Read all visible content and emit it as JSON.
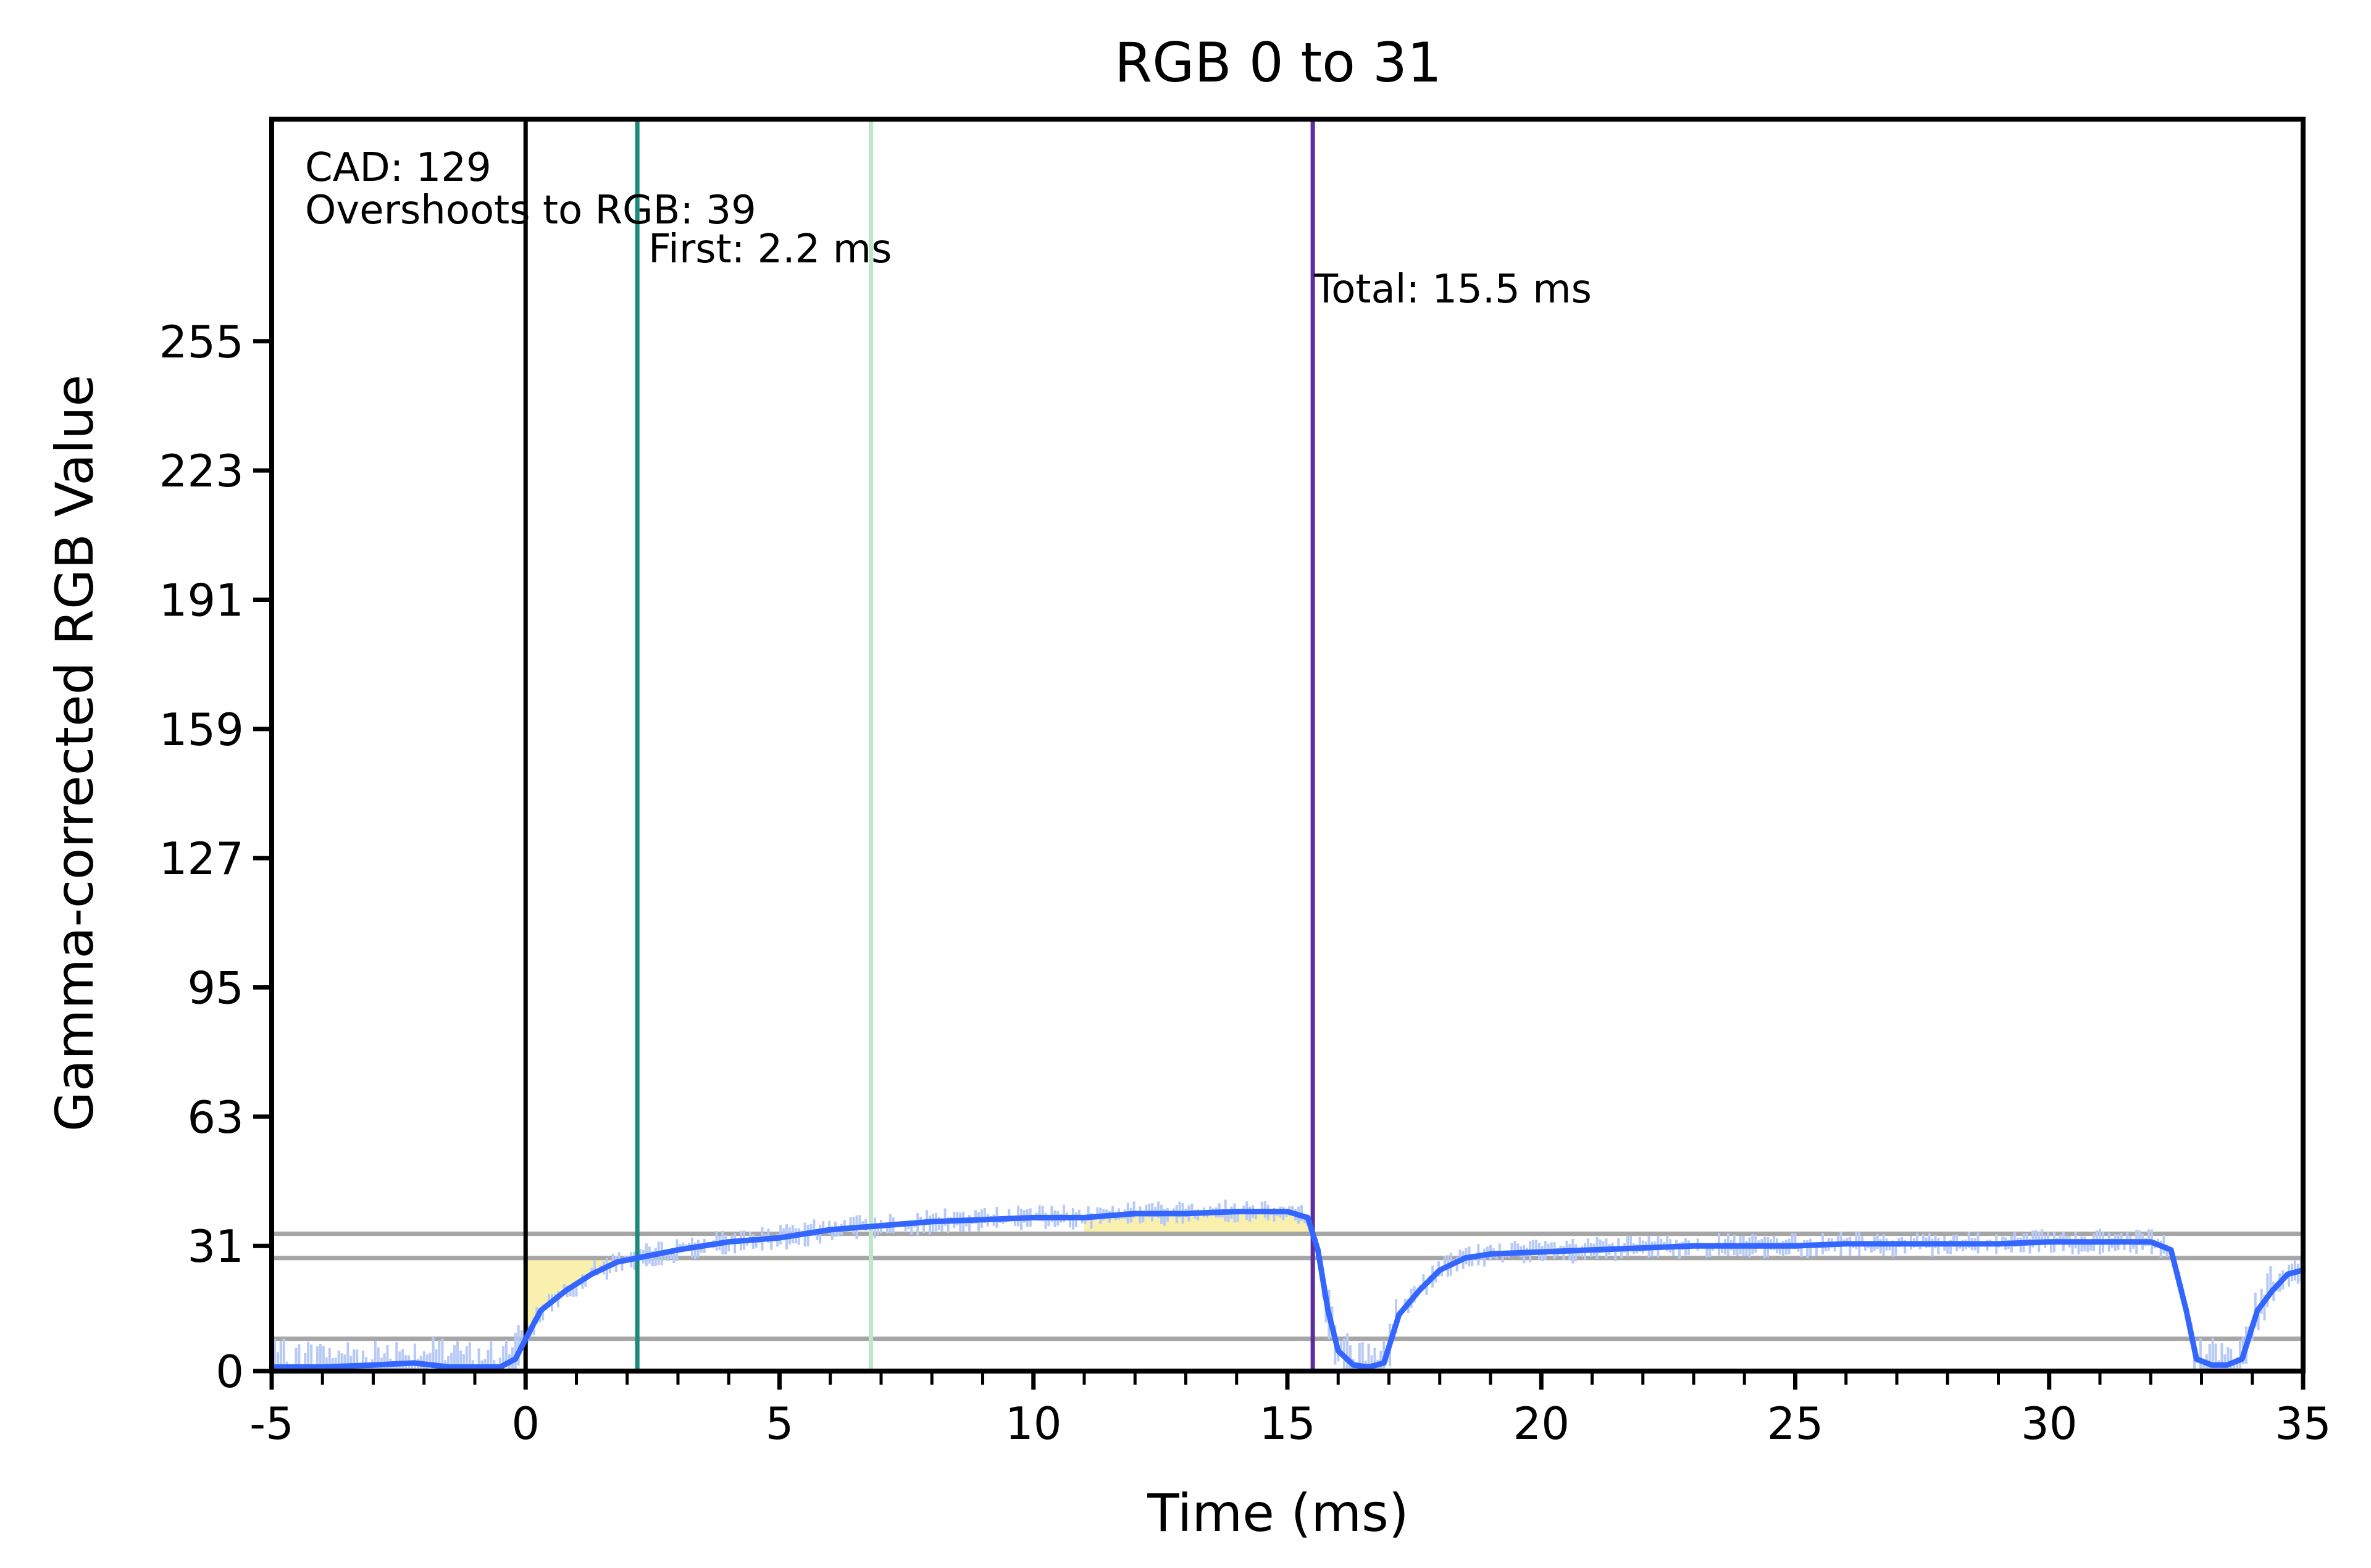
{
  "chart_data": {
    "type": "line",
    "title": "RGB 0 to 31",
    "xlabel": "Time (ms)",
    "ylabel": "Gamma-corrected RGB Value",
    "xlim": [
      -5,
      35
    ],
    "ylim": [
      0,
      310
    ],
    "x_ticks": [
      -5,
      0,
      5,
      10,
      15,
      20,
      25,
      30,
      35
    ],
    "x_tick_labels": [
      "-5",
      "0",
      "5",
      "10",
      "15",
      "20",
      "25",
      "30",
      "35"
    ],
    "y_ticks": [
      0,
      31,
      63,
      95,
      127,
      159,
      191,
      223,
      255
    ],
    "y_tick_labels": [
      "0",
      "31",
      "63",
      "95",
      "127",
      "159",
      "191",
      "223",
      "255"
    ],
    "horizontal_lines": [
      8,
      28,
      34
    ],
    "vertical_lines": [
      {
        "x": 0,
        "color": "#000000"
      },
      {
        "x": 2.2,
        "color": "#1a8a7a"
      },
      {
        "x": 6.8,
        "color": "#bfe6c9"
      },
      {
        "x": 15.5,
        "color": "#5b2d9e"
      }
    ],
    "annotations": {
      "cad": "CAD: 129",
      "overshoot": "Overshoots to RGB: 39",
      "first": "First: 2.2 ms",
      "total": "Total: 15.5 ms"
    },
    "series": [
      {
        "color": "#3366ff",
        "x": [
          -5,
          -4,
          -3,
          -2.2,
          -1.5,
          -1,
          -0.5,
          -0.2,
          0,
          0.3,
          0.8,
          1.3,
          1.8,
          2.2,
          3,
          4,
          5,
          6,
          7,
          8,
          9,
          10,
          11,
          12,
          13,
          14,
          15,
          15.4,
          15.6,
          15.8,
          16,
          16.3,
          16.6,
          16.9,
          17.2,
          17.6,
          18,
          18.5,
          19,
          20,
          21,
          22,
          23,
          24,
          25,
          26,
          27,
          28,
          29,
          30,
          31,
          32,
          32.4,
          32.7,
          32.9,
          33.2,
          33.5,
          33.8,
          34.1,
          34.4,
          34.7,
          35
        ],
        "y": [
          1,
          1,
          1.5,
          2,
          1,
          1,
          1,
          3,
          8,
          15,
          20,
          24,
          27,
          28,
          30,
          32,
          33,
          35,
          36,
          37,
          37.5,
          38,
          38,
          39,
          39,
          39.5,
          39.5,
          38,
          30,
          15,
          5,
          1.5,
          1,
          2,
          14,
          20,
          25,
          28,
          29,
          29.5,
          30,
          30.5,
          31,
          31,
          31,
          31.5,
          31.5,
          31.5,
          31.5,
          32,
          32,
          32,
          30,
          15,
          3,
          1.5,
          1.5,
          3,
          15,
          20,
          24,
          25
        ]
      }
    ]
  }
}
